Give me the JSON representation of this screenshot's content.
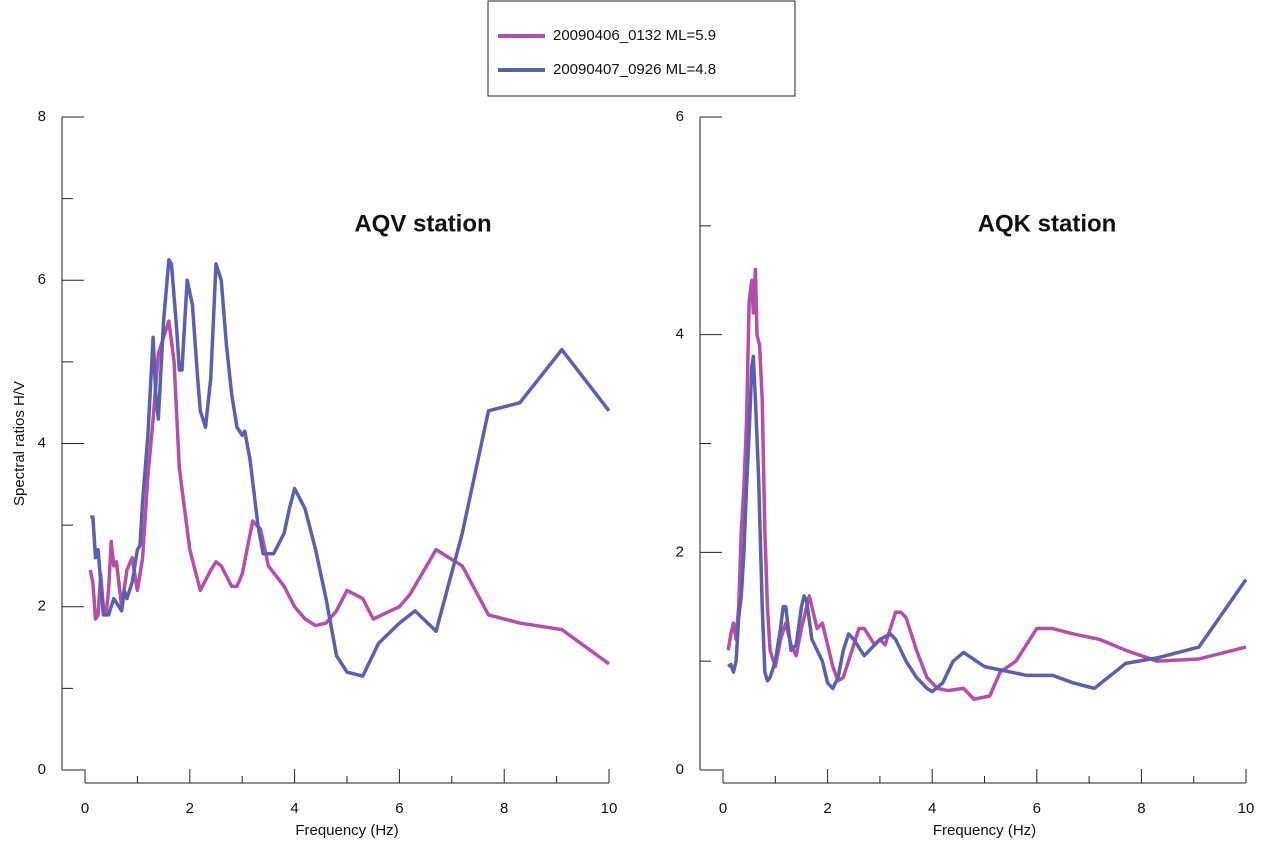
{
  "chart_data": [
    {
      "type": "line",
      "title": "AQV station",
      "xlabel": "Frequency (Hz)",
      "ylabel": "Spectral ratios H/V",
      "xlim": [
        0,
        10
      ],
      "xticks": [
        0,
        2,
        4,
        6,
        8,
        10
      ],
      "xminorticks": [
        1,
        3,
        5,
        7,
        9
      ],
      "ylim": [
        0,
        8
      ],
      "yticks": [
        0,
        2,
        4,
        6,
        8
      ],
      "yminorticks": [
        1,
        3,
        5,
        7
      ],
      "series": [
        {
          "name": "20090406_0132 ML=5.9",
          "color": "#b44fa8",
          "x": [
            0.1,
            0.15,
            0.2,
            0.25,
            0.3,
            0.35,
            0.4,
            0.45,
            0.5,
            0.55,
            0.6,
            0.7,
            0.8,
            0.9,
            1.0,
            1.1,
            1.2,
            1.3,
            1.4,
            1.5,
            1.6,
            1.7,
            1.8,
            2.0,
            2.2,
            2.4,
            2.5,
            2.6,
            2.8,
            2.9,
            3.0,
            3.2,
            3.35,
            3.5,
            3.8,
            4.0,
            4.2,
            4.4,
            4.6,
            4.8,
            5.0,
            5.3,
            5.5,
            6.0,
            6.2,
            6.7,
            7.2,
            7.7,
            8.3,
            9.1,
            10
          ],
          "values": [
            2.45,
            2.3,
            1.85,
            1.9,
            2.4,
            2.0,
            1.9,
            2.2,
            2.8,
            2.5,
            2.55,
            2.0,
            2.45,
            2.6,
            2.2,
            2.6,
            3.6,
            4.3,
            5.1,
            5.3,
            5.5,
            5.0,
            3.7,
            2.7,
            2.2,
            2.45,
            2.55,
            2.5,
            2.25,
            2.25,
            2.4,
            3.05,
            2.95,
            2.5,
            2.25,
            2.0,
            1.85,
            1.77,
            1.8,
            1.95,
            2.2,
            2.1,
            1.85,
            2.0,
            2.15,
            2.7,
            2.5,
            1.9,
            1.8,
            1.72,
            1.3
          ]
        },
        {
          "name": "20090407_0926 ML=4.8",
          "color": "#5a5fb0",
          "x": [
            0.1,
            0.15,
            0.2,
            0.25,
            0.3,
            0.35,
            0.45,
            0.5,
            0.55,
            0.6,
            0.7,
            0.75,
            0.8,
            0.9,
            1.0,
            1.05,
            1.1,
            1.2,
            1.3,
            1.35,
            1.4,
            1.5,
            1.6,
            1.65,
            1.75,
            1.8,
            1.85,
            1.95,
            2.05,
            2.15,
            2.2,
            2.3,
            2.4,
            2.5,
            2.6,
            2.7,
            2.8,
            2.9,
            3.0,
            3.05,
            3.15,
            3.3,
            3.4,
            3.6,
            3.8,
            3.9,
            4.0,
            4.2,
            4.4,
            4.6,
            4.8,
            5.0,
            5.3,
            5.6,
            6.0,
            6.3,
            6.7,
            7.2,
            7.7,
            8.3,
            9.1,
            10
          ],
          "values": [
            3.1,
            3.1,
            2.6,
            2.7,
            2.3,
            1.9,
            1.9,
            2.0,
            2.1,
            2.05,
            1.95,
            2.2,
            2.1,
            2.3,
            2.7,
            2.75,
            3.3,
            4.1,
            5.3,
            4.6,
            4.3,
            5.5,
            6.25,
            6.2,
            5.4,
            4.9,
            4.9,
            6.0,
            5.7,
            4.8,
            4.4,
            4.2,
            4.8,
            6.2,
            6.0,
            5.2,
            4.6,
            4.2,
            4.1,
            4.15,
            3.8,
            3.0,
            2.65,
            2.65,
            2.9,
            3.2,
            3.45,
            3.2,
            2.7,
            2.1,
            1.4,
            1.2,
            1.15,
            1.55,
            1.8,
            1.95,
            1.7,
            2.9,
            4.4,
            4.5,
            5.15,
            4.4
          ]
        }
      ]
    },
    {
      "type": "line",
      "title": "AQK station",
      "xlabel": "Frequency (Hz)",
      "xlim": [
        0,
        10
      ],
      "xticks": [
        0,
        2,
        4,
        6,
        8,
        10
      ],
      "xminorticks": [
        1,
        3,
        5,
        7,
        9
      ],
      "ylim": [
        0,
        6
      ],
      "yticks": [
        0,
        2,
        4,
        6
      ],
      "yminorticks": [
        1,
        3,
        5
      ],
      "series": [
        {
          "color": "#b44fa8",
          "x": [
            0.1,
            0.15,
            0.2,
            0.25,
            0.3,
            0.35,
            0.4,
            0.45,
            0.5,
            0.55,
            0.58,
            0.62,
            0.65,
            0.7,
            0.75,
            0.8,
            0.85,
            0.9,
            1.0,
            1.1,
            1.2,
            1.3,
            1.4,
            1.5,
            1.65,
            1.7,
            1.8,
            1.9,
            2.0,
            2.1,
            2.2,
            2.3,
            2.5,
            2.6,
            2.7,
            2.9,
            3.0,
            3.1,
            3.3,
            3.4,
            3.5,
            3.7,
            3.9,
            4.1,
            4.3,
            4.6,
            4.8,
            5.1,
            5.3,
            5.6,
            6.0,
            6.3,
            6.7,
            7.2,
            7.7,
            8.3,
            9.1,
            10
          ],
          "values": [
            1.1,
            1.25,
            1.35,
            1.2,
            1.5,
            2.2,
            2.6,
            3.2,
            4.3,
            4.5,
            4.2,
            4.6,
            4.0,
            3.9,
            3.4,
            2.2,
            1.5,
            1.1,
            0.95,
            1.2,
            1.35,
            1.15,
            1.05,
            1.3,
            1.6,
            1.5,
            1.3,
            1.35,
            1.15,
            0.95,
            0.82,
            0.85,
            1.15,
            1.3,
            1.3,
            1.15,
            1.2,
            1.15,
            1.45,
            1.45,
            1.4,
            1.1,
            0.85,
            0.75,
            0.73,
            0.75,
            0.65,
            0.68,
            0.9,
            1.0,
            1.3,
            1.3,
            1.25,
            1.2,
            1.1,
            1.0,
            1.02,
            1.13
          ]
        },
        {
          "color": "#5a5fb0",
          "x": [
            0.1,
            0.15,
            0.2,
            0.25,
            0.3,
            0.35,
            0.4,
            0.45,
            0.5,
            0.55,
            0.58,
            0.62,
            0.68,
            0.75,
            0.8,
            0.85,
            0.9,
            1.0,
            1.1,
            1.15,
            1.2,
            1.3,
            1.4,
            1.5,
            1.55,
            1.6,
            1.7,
            1.8,
            1.9,
            2.0,
            2.1,
            2.2,
            2.3,
            2.4,
            2.5,
            2.7,
            2.8,
            3.0,
            3.2,
            3.3,
            3.5,
            3.7,
            3.9,
            4.0,
            4.2,
            4.4,
            4.6,
            5.0,
            5.3,
            5.8,
            6.3,
            6.7,
            7.1,
            7.7,
            8.3,
            9.1,
            10
          ],
          "values": [
            0.95,
            0.97,
            0.9,
            1.0,
            1.4,
            1.6,
            2.0,
            2.6,
            3.1,
            3.7,
            3.8,
            3.4,
            2.7,
            1.5,
            0.9,
            0.82,
            0.85,
            1.0,
            1.3,
            1.5,
            1.5,
            1.1,
            1.15,
            1.5,
            1.6,
            1.55,
            1.2,
            1.1,
            1.0,
            0.8,
            0.75,
            0.85,
            1.1,
            1.25,
            1.2,
            1.05,
            1.1,
            1.2,
            1.25,
            1.2,
            1.0,
            0.85,
            0.75,
            0.72,
            0.8,
            1.0,
            1.08,
            0.95,
            0.92,
            0.87,
            0.87,
            0.8,
            0.75,
            0.98,
            1.03,
            1.13,
            1.75
          ]
        }
      ]
    }
  ]
}
